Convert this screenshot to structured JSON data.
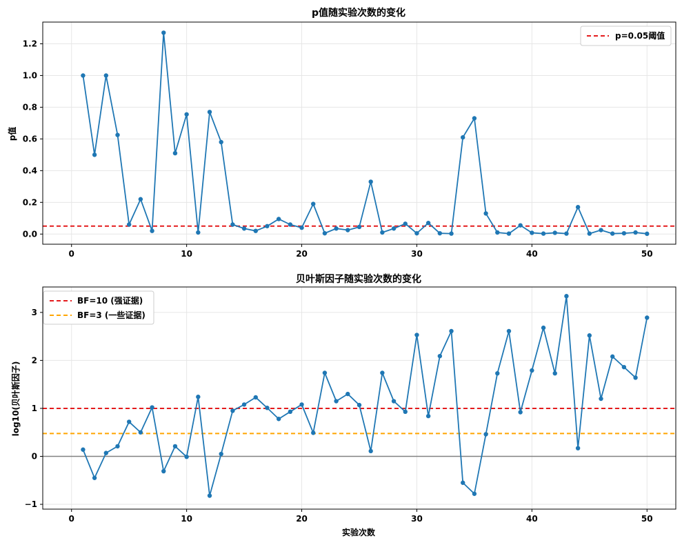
{
  "colors": {
    "series": "#1f77b4",
    "threshold_red": "#e41a1c",
    "threshold_orange": "#ffa500",
    "zero_line": "#808080",
    "grid": "#e6e6e6"
  },
  "chart_data": [
    {
      "type": "line",
      "title": "p值随实验次数的变化",
      "xlabel": "",
      "ylabel": "p值",
      "xlim": [
        -2.5,
        52.5
      ],
      "ylim": [
        -0.064,
        1.337
      ],
      "x_ticks": [
        0,
        10,
        20,
        30,
        40,
        50
      ],
      "y_ticks": [
        0.0,
        0.2,
        0.4,
        0.6,
        0.8,
        1.0,
        1.2
      ],
      "y_tick_labels": [
        "0.0",
        "0.2",
        "0.4",
        "0.6",
        "0.8",
        "1.0",
        "1.2"
      ],
      "grid": true,
      "legend_position": "top-right",
      "series": [
        {
          "x": [
            1,
            2,
            3,
            4,
            5,
            6,
            7,
            8,
            9,
            10,
            11,
            12,
            13,
            14,
            15,
            16,
            17,
            18,
            19,
            20,
            21,
            22,
            23,
            24,
            25,
            26,
            27,
            28,
            29,
            30,
            31,
            32,
            33,
            34,
            35,
            36,
            37,
            38,
            39,
            40,
            41,
            42,
            43,
            44,
            45,
            46,
            47,
            48,
            49,
            50
          ],
          "y": [
            1.0,
            0.5,
            1.0,
            0.625,
            0.06,
            0.22,
            0.02,
            1.27,
            0.51,
            0.755,
            0.01,
            0.77,
            0.58,
            0.06,
            0.035,
            0.02,
            0.05,
            0.095,
            0.06,
            0.04,
            0.19,
            0.005,
            0.035,
            0.025,
            0.045,
            0.33,
            0.01,
            0.035,
            0.065,
            0.005,
            0.07,
            0.005,
            0.003,
            0.61,
            0.73,
            0.13,
            0.01,
            0.003,
            0.055,
            0.008,
            0.003,
            0.008,
            0.003,
            0.17,
            0.003,
            0.025,
            0.003,
            0.005,
            0.01,
            0.002
          ]
        }
      ],
      "reference_lines": [
        {
          "y": 0.05,
          "label": "p=0.05阈值",
          "style": "dashed",
          "color": "#e41a1c"
        }
      ]
    },
    {
      "type": "line",
      "title": "贝叶斯因子随实验次数的变化",
      "xlabel": "实验次数",
      "ylabel": "log10(贝叶斯因子)",
      "xlim": [
        -2.5,
        52.5
      ],
      "ylim": [
        -1.1,
        3.53
      ],
      "x_ticks": [
        0,
        10,
        20,
        30,
        40,
        50
      ],
      "y_ticks": [
        -1,
        0,
        1,
        2,
        3
      ],
      "y_tick_labels": [
        "−1",
        "0",
        "1",
        "2",
        "3"
      ],
      "grid": true,
      "legend_position": "top-left",
      "series": [
        {
          "x": [
            1,
            2,
            3,
            4,
            5,
            6,
            7,
            8,
            9,
            10,
            11,
            12,
            13,
            14,
            15,
            16,
            17,
            18,
            19,
            20,
            21,
            22,
            23,
            24,
            25,
            26,
            27,
            28,
            29,
            30,
            31,
            32,
            33,
            34,
            35,
            36,
            37,
            38,
            39,
            40,
            41,
            42,
            43,
            44,
            45,
            46,
            47,
            48,
            49,
            50
          ],
          "y": [
            0.14,
            -0.45,
            0.07,
            0.21,
            0.72,
            0.5,
            1.02,
            -0.31,
            0.21,
            -0.01,
            1.24,
            -0.82,
            0.05,
            0.95,
            1.08,
            1.23,
            1.01,
            0.78,
            0.93,
            1.08,
            0.49,
            1.74,
            1.15,
            1.3,
            1.07,
            0.11,
            1.74,
            1.15,
            0.93,
            2.53,
            0.84,
            2.09,
            2.61,
            -0.55,
            -0.78,
            0.46,
            1.73,
            2.61,
            0.92,
            1.79,
            2.68,
            1.73,
            3.34,
            0.17,
            2.52,
            1.2,
            2.08,
            1.86,
            1.64,
            2.89
          ]
        }
      ],
      "reference_lines": [
        {
          "y": 1.0,
          "label": "BF=10 (强证据)",
          "style": "dashed",
          "color": "#e41a1c"
        },
        {
          "y": 0.477,
          "label": "BF=3 (一些证据)",
          "style": "dashed",
          "color": "#ffa500"
        },
        {
          "y": 0.0,
          "label": "",
          "style": "solid",
          "color": "#808080"
        }
      ]
    }
  ]
}
